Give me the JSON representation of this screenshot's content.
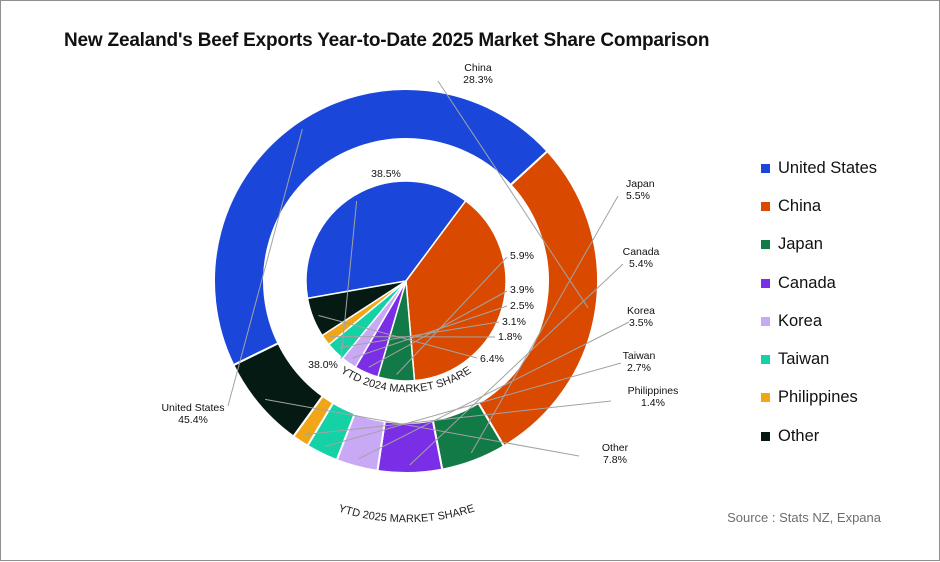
{
  "title": "New Zealand's Beef Exports Year-to-Date 2025 Market Share Comparison",
  "source": "Source : Stats NZ, Expana",
  "chart_data": {
    "type": "pie",
    "title": "New Zealand's Beef Exports Year-to-Date 2025 Market Share Comparison",
    "categories": [
      "United States",
      "China",
      "Japan",
      "Canada",
      "Korea",
      "Taiwan",
      "Philippines",
      "Other"
    ],
    "colors": [
      "#1a47d9",
      "#d94a00",
      "#117a47",
      "#7a2ee6",
      "#c9a8f5",
      "#14d1a6",
      "#f0a617",
      "#041a12"
    ],
    "series": [
      {
        "name": "YTD 2025 MARKET SHARE",
        "ring": "outer",
        "values": [
          45.4,
          28.3,
          5.5,
          5.4,
          3.5,
          2.7,
          1.4,
          7.8
        ],
        "labels": [
          "45.4%",
          "28.3%",
          "5.5%",
          "5.4%",
          "3.5%",
          "2.7%",
          "1.4%",
          "7.8%"
        ]
      },
      {
        "name": "YTD 2024 MARKET SHARE",
        "ring": "inner",
        "values": [
          38.0,
          38.5,
          5.9,
          3.9,
          2.5,
          3.1,
          1.8,
          6.4
        ],
        "labels": [
          "38.0%",
          "38.5%",
          "5.9%",
          "3.9%",
          "2.5%",
          "3.1%",
          "1.8%",
          "6.4%"
        ]
      }
    ],
    "legend_position": "right"
  },
  "legend": [
    {
      "label": "United States",
      "color": "#1a47d9"
    },
    {
      "label": "China",
      "color": "#d94a00"
    },
    {
      "label": "Japan",
      "color": "#117a47"
    },
    {
      "label": "Canada",
      "color": "#7a2ee6"
    },
    {
      "label": "Korea",
      "color": "#c9a8f5"
    },
    {
      "label": "Taiwan",
      "color": "#14d1a6"
    },
    {
      "label": "Philippines",
      "color": "#f0a617"
    },
    {
      "label": "Other",
      "color": "#041a12"
    }
  ]
}
